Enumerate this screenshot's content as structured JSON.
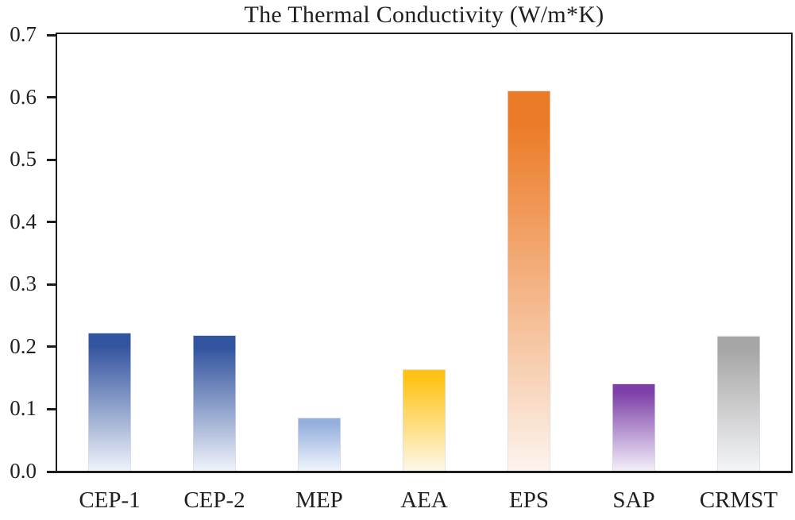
{
  "title": "The Thermal Conductivity (W/m*K)",
  "colors": {
    "axis": "#1d1d1d",
    "text": "#1f1f1f",
    "background": "#ffffff"
  },
  "chart_data": {
    "type": "bar",
    "title": "The Thermal Conductivity (W/m*K)",
    "xlabel": "",
    "ylabel": "",
    "categories": [
      "CEP-1",
      "CEP-2",
      "MEP",
      "AEA",
      "EPS",
      "SAP",
      "CRMST"
    ],
    "values": [
      0.221,
      0.218,
      0.085,
      0.163,
      0.61,
      0.14,
      0.217
    ],
    "bar_colors_top": [
      "#33549f",
      "#33549f",
      "#94aede",
      "#ffc417",
      "#ec7b28",
      "#7d3fa8",
      "#a6a6a6"
    ],
    "bar_colors_bottom": [
      "#eff3fa",
      "#eff3fa",
      "#f0f5fc",
      "#fdf7e9",
      "#fdf3ed",
      "#f3effa",
      "#f4f5f7"
    ],
    "ylim": [
      0,
      0.7
    ],
    "ytick_step": 0.1,
    "ytick_labels": [
      "0.0",
      "0.1",
      "0.2",
      "0.3",
      "0.4",
      "0.5",
      "0.6",
      "0.7"
    ],
    "grid": false,
    "legend": false,
    "bar_gradient": "vertical-fade-to-white",
    "plot_border": "full-box"
  }
}
